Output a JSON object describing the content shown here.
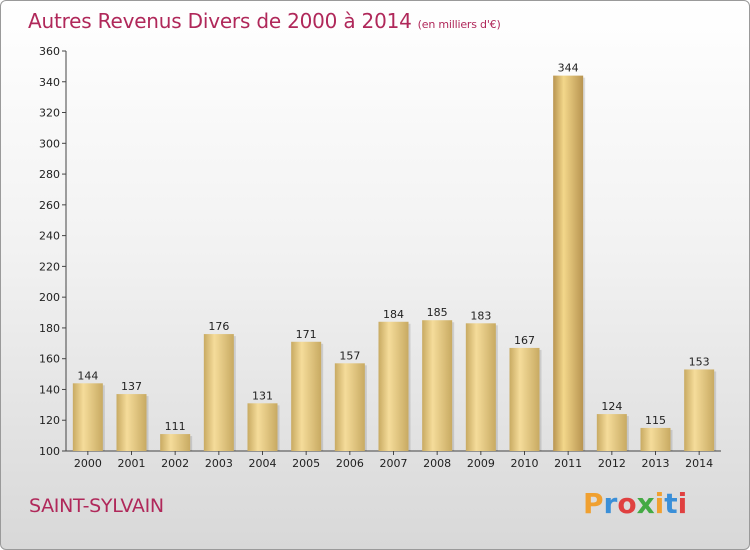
{
  "header": {
    "title": "Autres Revenus Divers de 2000 à 2014",
    "unit": "(en milliers d'€)"
  },
  "footer": {
    "place": "SAINT-SYLVAIN",
    "logo_text": "Proxiti"
  },
  "colors": {
    "title": "#b0285a",
    "bar_light": "#f5dc9a",
    "bar_dark": "#c8aa62",
    "bar_highlight_light": "#f3d78a",
    "bar_highlight_dark": "#b89450",
    "logo": [
      "#f0a030",
      "#3a8fd8",
      "#e04040",
      "#44aa44",
      "#f0a030",
      "#3a8fd8",
      "#e04040"
    ]
  },
  "chart_data": {
    "type": "bar",
    "categories": [
      "2000",
      "2001",
      "2002",
      "2003",
      "2004",
      "2005",
      "2006",
      "2007",
      "2008",
      "2009",
      "2010",
      "2011",
      "2012",
      "2013",
      "2014"
    ],
    "values": [
      144,
      137,
      111,
      176,
      131,
      171,
      157,
      184,
      185,
      183,
      167,
      344,
      124,
      115,
      153
    ],
    "title": "Autres Revenus Divers de 2000 à 2014",
    "xlabel": "",
    "ylabel": "",
    "ylim": [
      100,
      360
    ],
    "yticks": [
      100,
      120,
      140,
      160,
      180,
      200,
      220,
      240,
      260,
      280,
      300,
      320,
      340,
      360
    ],
    "highlight_max": true,
    "grid": false,
    "legend": "none"
  }
}
